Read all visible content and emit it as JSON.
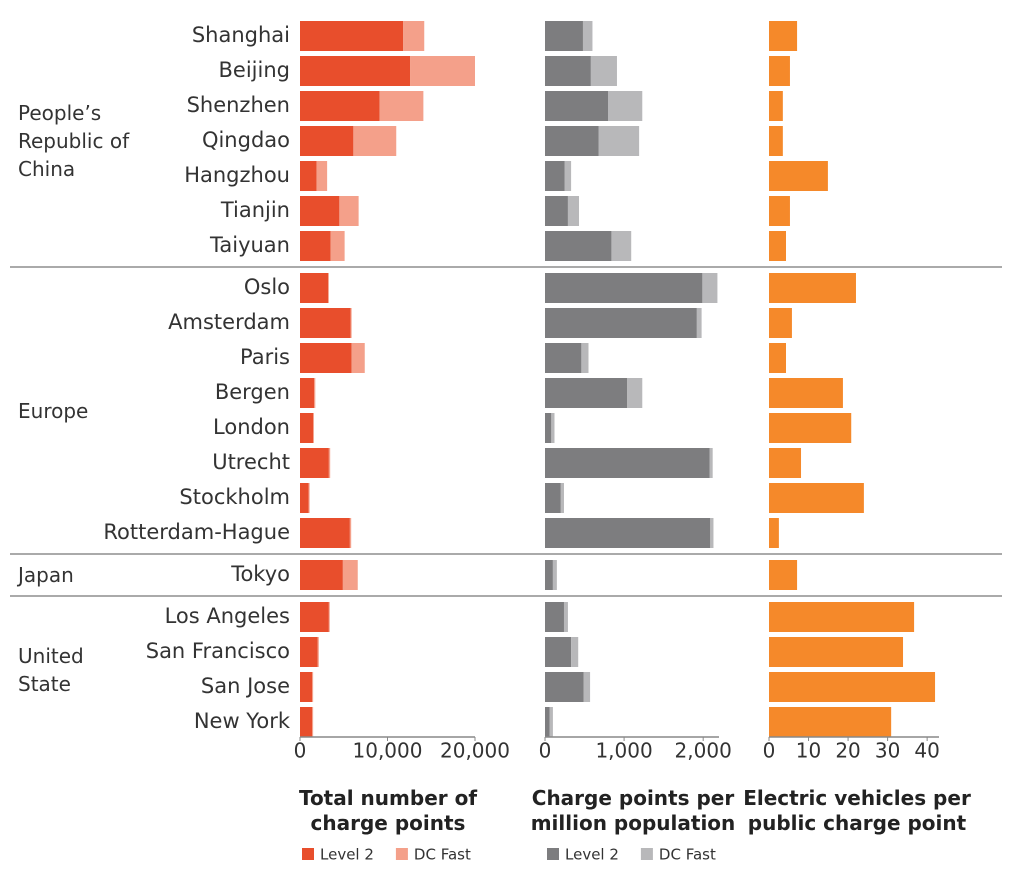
{
  "chart_data": {
    "type": "bar",
    "groups": [
      {
        "name": "People’s Republic of China",
        "categories": [
          "Shanghai",
          "Beijing",
          "Shenzhen",
          "Qingdao",
          "Hangzhou",
          "Tianjin",
          "Taiyuan"
        ]
      },
      {
        "name": "Europe",
        "categories": [
          "Oslo",
          "Amsterdam",
          "Paris",
          "Bergen",
          "London",
          "Utrecht",
          "Stockholm",
          "Rotterdam-Hague"
        ]
      },
      {
        "name": "Japan",
        "categories": [
          "Tokyo"
        ]
      },
      {
        "name": "United State",
        "categories": [
          "Los Angeles",
          "San Francisco",
          "San Jose",
          "New York"
        ]
      }
    ],
    "panels": [
      {
        "title": "Total number of charge points",
        "stacked": true,
        "xlim": [
          0,
          20000
        ],
        "xticks": [
          0,
          {
            "value": 10000,
            "label": "10,000"
          },
          {
            "value": 20000,
            "label": "20,000"
          }
        ],
        "series": [
          {
            "name": "Level 2",
            "color": "#e84e2c",
            "values": [
              11800,
              12600,
              9100,
              6100,
              1900,
              4500,
              3500,
              3200,
              5800,
              5900,
              1600,
              1500,
              3300,
              1000,
              5700,
              4900,
              3300,
              2000,
              1400,
              1400
            ]
          },
          {
            "name": "DC Fast",
            "color": "#f4a08a",
            "values": [
              2400,
              7400,
              5000,
              4900,
              1200,
              2200,
              1600,
              100,
              100,
              1500,
              150,
              100,
              150,
              100,
              150,
              1700,
              100,
              150,
              100,
              100
            ]
          }
        ]
      },
      {
        "title": "Charge points per million population",
        "stacked": true,
        "xlim": [
          0,
          2200
        ],
        "xticks": [
          0,
          {
            "value": 1000,
            "label": "1,000"
          },
          {
            "value": 2000,
            "label": "2,000"
          }
        ],
        "series": [
          {
            "name": "Level 2",
            "color": "#7d7d7f",
            "values": [
              480,
              580,
              800,
              680,
              250,
              290,
              840,
              1990,
              1920,
              460,
              1040,
              80,
              2080,
              200,
              2090,
              100,
              240,
              330,
              490,
              60
            ]
          },
          {
            "name": "DC Fast",
            "color": "#b8b8ba",
            "values": [
              120,
              330,
              430,
              510,
              80,
              140,
              250,
              190,
              60,
              90,
              190,
              40,
              40,
              40,
              40,
              50,
              50,
              90,
              80,
              40
            ]
          }
        ]
      },
      {
        "title": "Electric vehicles per public charge point",
        "stacked": false,
        "xlim": [
          0,
          43
        ],
        "xticks": [
          0,
          10,
          20,
          30,
          40
        ],
        "series": [
          {
            "color": "#f5892a",
            "values": [
              7.1,
              5.3,
              3.5,
              3.5,
              14.9,
              5.3,
              4.3,
              22,
              5.8,
              4.3,
              18.7,
              20.8,
              8.1,
              24,
              2.5,
              7.1,
              36.7,
              33.9,
              42,
              30.9
            ]
          }
        ]
      }
    ]
  }
}
